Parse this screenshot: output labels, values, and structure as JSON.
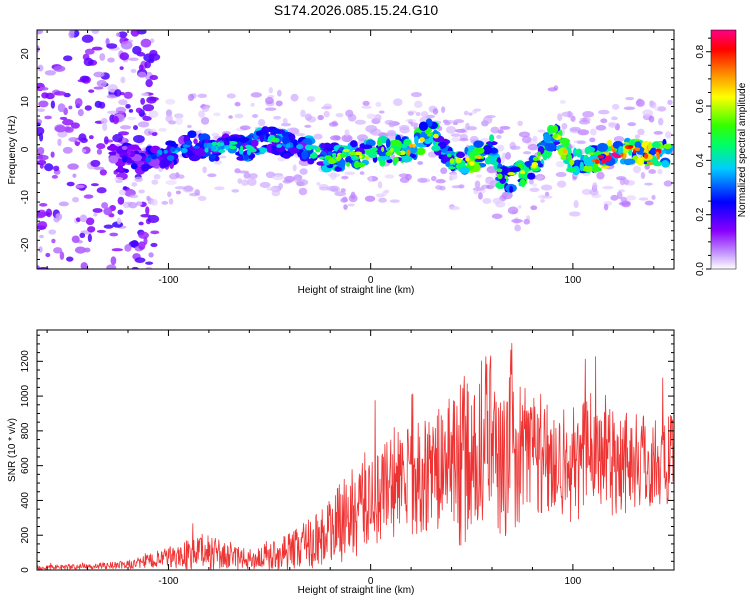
{
  "title": "S174.2026.085.15.24.G10",
  "chart_data": [
    {
      "type": "heatmap",
      "xlabel": "Height of straight line (km)",
      "ylabel": "Frequency (Hz)",
      "xlim": [
        -165,
        150
      ],
      "ylim": [
        -25,
        25
      ],
      "xticks": [
        -100,
        0,
        100
      ],
      "yticks": [
        -20,
        -10,
        0,
        10,
        20
      ],
      "colorbar": {
        "label": "Normalized spectral amplitude",
        "range": [
          0,
          0.88
        ],
        "ticks": [
          0.0,
          0.2,
          0.4,
          0.6,
          0.8
        ]
      },
      "ridge": {
        "x": [
          -125,
          -110,
          -100,
          -90,
          -80,
          -70,
          -60,
          -50,
          -40,
          -30,
          -20,
          -10,
          0,
          10,
          20,
          30,
          40,
          50,
          60,
          65,
          70,
          80,
          90,
          95,
          100,
          110,
          120,
          130,
          140,
          148
        ],
        "y": [
          -2,
          -2,
          -1,
          1,
          0,
          1,
          0,
          2,
          1,
          0,
          -2,
          -1,
          -1,
          0,
          0,
          4,
          -3,
          -2,
          0,
          -6,
          -6,
          -4,
          3,
          1,
          -3,
          -2,
          -1,
          0,
          -1,
          -1
        ],
        "amplitude": [
          0.25,
          0.3,
          0.35,
          0.35,
          0.4,
          0.45,
          0.45,
          0.5,
          0.4,
          0.45,
          0.55,
          0.6,
          0.65,
          0.6,
          0.7,
          0.6,
          0.55,
          0.7,
          0.6,
          0.55,
          0.65,
          0.6,
          0.6,
          0.7,
          0.55,
          0.75,
          0.88,
          0.8,
          0.85,
          0.7
        ]
      }
    },
    {
      "type": "line",
      "xlabel": "Height of straight line (km)",
      "ylabel": "SNR (10 * v/v)",
      "xlim": [
        -165,
        150
      ],
      "ylim": [
        0,
        1380
      ],
      "xticks": [
        -100,
        0,
        100
      ],
      "yticks": [
        0,
        200,
        400,
        600,
        800,
        1000,
        1200
      ],
      "series": [
        {
          "name": "SNR",
          "color": "#ee3333",
          "envelope": {
            "x": [
              -165,
              -140,
              -120,
              -100,
              -90,
              -80,
              -70,
              -60,
              -50,
              -40,
              -30,
              -20,
              -10,
              0,
              10,
              20,
              30,
              40,
              45,
              50,
              55,
              60,
              65,
              70,
              75,
              80,
              90,
              100,
              110,
              120,
              130,
              140,
              150
            ],
            "mean": [
              15,
              20,
              30,
              70,
              90,
              110,
              70,
              60,
              80,
              110,
              160,
              220,
              320,
              420,
              480,
              520,
              560,
              620,
              650,
              600,
              700,
              750,
              560,
              800,
              600,
              700,
              650,
              600,
              680,
              650,
              640,
              620,
              630
            ],
            "spread": [
              15,
              15,
              25,
              60,
              90,
              110,
              70,
              60,
              80,
              110,
              150,
              200,
              260,
              300,
              320,
              330,
              330,
              380,
              550,
              400,
              450,
              500,
              400,
              560,
              400,
              400,
              350,
              350,
              350,
              350,
              300,
              280,
              260
            ]
          }
        }
      ]
    }
  ],
  "colors": {
    "scale": [
      "#ffffff",
      "#d8b8f8",
      "#8800ff",
      "#0000ff",
      "#00eeff",
      "#00ff00",
      "#ffff00",
      "#ff8800",
      "#ff0000",
      "#ff00aa"
    ],
    "snr_line": "#ee3333",
    "frame": "#000000"
  }
}
